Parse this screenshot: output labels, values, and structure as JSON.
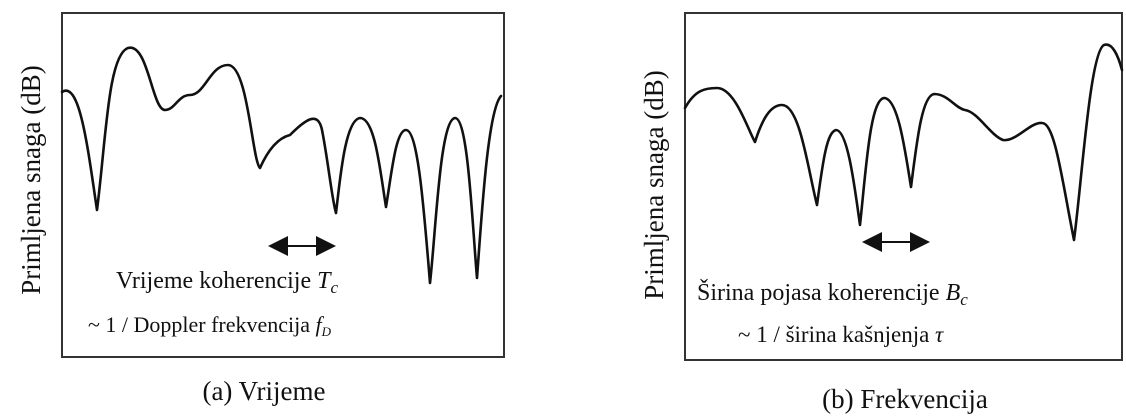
{
  "panel_a": {
    "ylabel": "Primljena snaga (dB)",
    "annotation_line1": "Vrijeme koherencije ",
    "annotation_symbol": "T",
    "annotation_symbol_sub": "c",
    "annotation_line2": "~ 1 / Doppler frekvencija ",
    "annotation_line2_symbol": "f",
    "annotation_line2_symbol_sub": "D",
    "caption": "(a) Vrijeme"
  },
  "panel_b": {
    "ylabel": "Primljena snaga (dB)",
    "annotation_line1": "Širina pojasa koherencije ",
    "annotation_symbol": "B",
    "annotation_symbol_sub": "c",
    "annotation_line2": "~ 1 / širina kašnjenja ",
    "annotation_line2_symbol": "τ",
    "caption": "(b) Frekvencija"
  },
  "colors": {
    "line": "#111111",
    "frame": "#333333"
  }
}
